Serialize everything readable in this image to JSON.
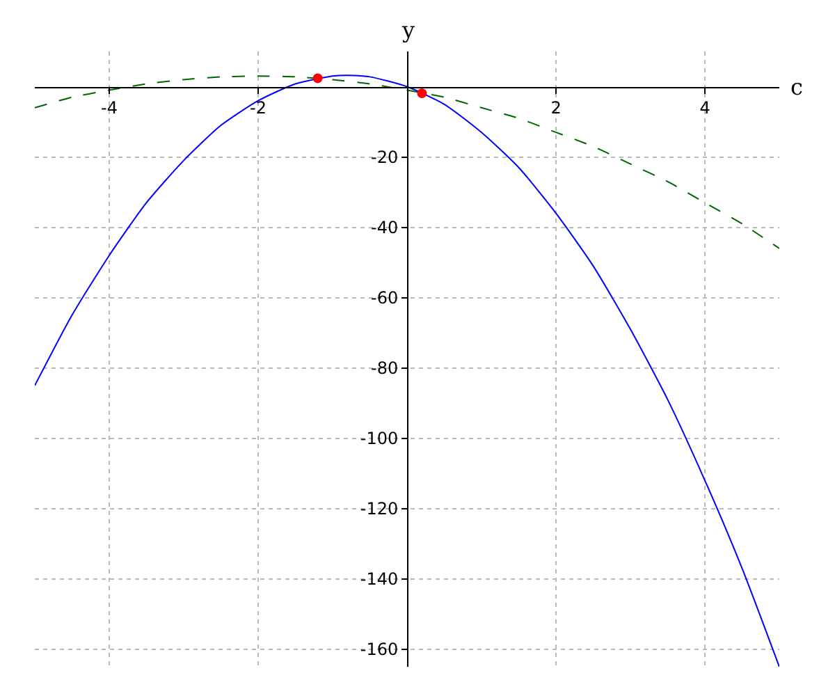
{
  "chart_data": {
    "type": "line",
    "xlabel": "c",
    "ylabel": "y",
    "xlim": [
      -5,
      5
    ],
    "ylim": [
      -165,
      10
    ],
    "xticks": [
      -4,
      -2,
      2,
      4
    ],
    "yticks": [
      -160,
      -140,
      -120,
      -100,
      -80,
      -60,
      -40,
      -20
    ],
    "grid": true,
    "series": [
      {
        "color": "#0000ff",
        "line_style": "solid",
        "x": [
          -5,
          -4.5,
          -4,
          -3.5,
          -3,
          -2.5,
          -2,
          -1.5,
          -1,
          -0.8,
          -0.5,
          0,
          0.5,
          1,
          1.5,
          2,
          2.5,
          3,
          3.5,
          4,
          4.5,
          5
        ],
        "values": [
          -85,
          -65,
          -48,
          -33,
          -21,
          -11,
          -4,
          0.8,
          3,
          3.2,
          2.8,
          0,
          -5,
          -13,
          -23,
          -36,
          -51,
          -69,
          -89,
          -112,
          -137,
          -165
        ]
      },
      {
        "color": "#006400",
        "line_style": "dashed",
        "x": [
          -5,
          -4.5,
          -4,
          -3.5,
          -3,
          -2.5,
          -2,
          -1.5,
          -1,
          -0.5,
          0,
          0.5,
          1,
          1.5,
          2,
          2.5,
          3,
          3.5,
          4,
          4.5,
          5
        ],
        "values": [
          -6,
          -3,
          -1,
          0.8,
          2,
          2.8,
          3,
          2.8,
          2,
          0.8,
          -1,
          -3,
          -6,
          -9,
          -13,
          -17,
          -22,
          -27,
          -33,
          -39,
          -46
        ]
      },
      {
        "type": "scatter",
        "color": "#ff0000",
        "marker": "circle",
        "x": [
          -1.2,
          0.2
        ],
        "values": [
          2.4,
          -1.9
        ]
      }
    ]
  }
}
